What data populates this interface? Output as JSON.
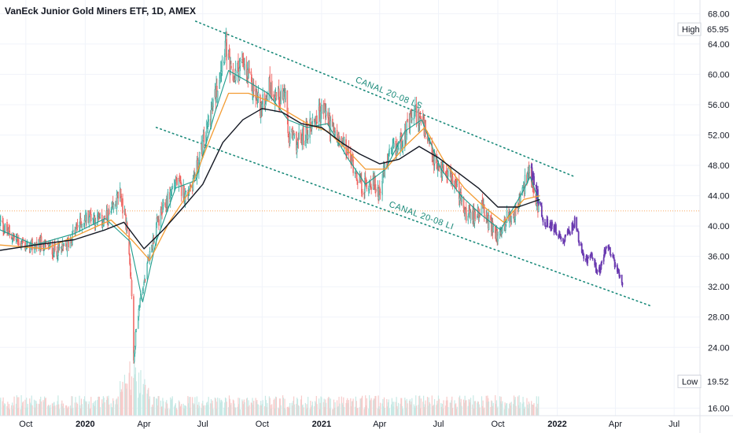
{
  "title": "VanEck Junior Gold Miners ETF, 1D, AMEX",
  "colors": {
    "up": "#26a69a",
    "down": "#ef5350",
    "candle_up_body": "#a5d6cf",
    "candle_down_body": "#f28b88",
    "forecast": "#6a3ab0",
    "channel": "#1a8a7a",
    "ma_black": "#131722",
    "ma_orange": "#f39c33",
    "ma_teal": "#1e9c8c",
    "hline": "#f6a860",
    "grid": "#f0f3fa",
    "axis_text": "#131722"
  },
  "chart_data": {
    "type": "candlestick",
    "y_ticks": [
      "68.00",
      "64.00",
      "60.00",
      "56.00",
      "52.00",
      "48.00",
      "44.00",
      "40.00",
      "36.00",
      "32.00",
      "28.00",
      "24.00",
      "16.00"
    ],
    "y_tick_values": [
      68,
      64,
      60,
      56,
      52,
      48,
      44,
      40,
      36,
      32,
      28,
      24,
      16
    ],
    "ylim": [
      15,
      69.8
    ],
    "x_ticks": [
      {
        "label": "Oct",
        "date": "2019-10-01"
      },
      {
        "label": "2020",
        "date": "2020-01-01",
        "year": true
      },
      {
        "label": "Apr",
        "date": "2020-04-01"
      },
      {
        "label": "Jul",
        "date": "2020-07-01"
      },
      {
        "label": "Oct",
        "date": "2020-10-01"
      },
      {
        "label": "2021",
        "date": "2021-01-01",
        "year": true
      },
      {
        "label": "Apr",
        "date": "2021-04-01"
      },
      {
        "label": "Jul",
        "date": "2021-07-01"
      },
      {
        "label": "Oct",
        "date": "2021-10-01"
      },
      {
        "label": "2022",
        "date": "2022-01-01",
        "year": true
      },
      {
        "label": "Apr",
        "date": "2022-04-01"
      },
      {
        "label": "Jul",
        "date": "2022-07-01"
      }
    ],
    "x_range": [
      "2019-08-22",
      "2022-08-10"
    ],
    "high": {
      "label": "High",
      "value": "65.95"
    },
    "low": {
      "label": "Low",
      "value": "19.52"
    },
    "horizontal_line": 42,
    "price_path": [
      [
        "2019-08-22",
        40.5
      ],
      [
        "2019-09-05",
        39.0
      ],
      [
        "2019-09-20",
        38.0
      ],
      [
        "2019-10-05",
        37.2
      ],
      [
        "2019-10-25",
        37.6
      ],
      [
        "2019-11-15",
        36.8
      ],
      [
        "2019-12-01",
        37.0
      ],
      [
        "2019-12-20",
        40.0
      ],
      [
        "2020-01-08",
        41.5
      ],
      [
        "2020-01-25",
        40.5
      ],
      [
        "2020-02-10",
        41.5
      ],
      [
        "2020-02-24",
        44.5
      ],
      [
        "2020-03-05",
        40.0
      ],
      [
        "2020-03-12",
        33.0
      ],
      [
        "2020-03-16",
        22.0
      ],
      [
        "2020-03-20",
        27.0
      ],
      [
        "2020-03-27",
        30.5
      ],
      [
        "2020-04-07",
        35.0
      ],
      [
        "2020-04-20",
        40.0
      ],
      [
        "2020-05-05",
        43.0
      ],
      [
        "2020-05-20",
        46.0
      ],
      [
        "2020-06-05",
        44.0
      ],
      [
        "2020-06-20",
        47.0
      ],
      [
        "2020-07-05",
        52.0
      ],
      [
        "2020-07-20",
        57.0
      ],
      [
        "2020-08-05",
        64.0
      ],
      [
        "2020-08-15",
        59.0
      ],
      [
        "2020-08-30",
        61.5
      ],
      [
        "2020-09-15",
        58.5
      ],
      [
        "2020-09-30",
        55.5
      ],
      [
        "2020-10-12",
        58.5
      ],
      [
        "2020-10-25",
        57.0
      ],
      [
        "2020-11-05",
        57.5
      ],
      [
        "2020-11-10",
        52.0
      ],
      [
        "2020-11-25",
        51.0
      ],
      [
        "2020-12-10",
        52.5
      ],
      [
        "2020-12-20",
        54.0
      ],
      [
        "2021-01-05",
        55.5
      ],
      [
        "2021-01-20",
        52.0
      ],
      [
        "2021-02-05",
        50.5
      ],
      [
        "2021-02-20",
        48.0
      ],
      [
        "2021-03-05",
        45.0
      ],
      [
        "2021-03-20",
        46.0
      ],
      [
        "2021-03-30",
        44.5
      ],
      [
        "2021-04-15",
        49.0
      ],
      [
        "2021-04-30",
        50.5
      ],
      [
        "2021-05-15",
        53.0
      ],
      [
        "2021-05-25",
        55.0
      ],
      [
        "2021-06-05",
        54.0
      ],
      [
        "2021-06-17",
        50.0
      ],
      [
        "2021-06-30",
        47.5
      ],
      [
        "2021-07-15",
        47.5
      ],
      [
        "2021-07-30",
        45.0
      ],
      [
        "2021-08-10",
        42.0
      ],
      [
        "2021-08-20",
        41.0
      ],
      [
        "2021-09-05",
        42.5
      ],
      [
        "2021-09-20",
        40.0
      ],
      [
        "2021-10-01",
        38.5
      ],
      [
        "2021-10-15",
        41.0
      ],
      [
        "2021-10-30",
        42.0
      ],
      [
        "2021-11-10",
        45.0
      ],
      [
        "2021-11-18",
        47.5
      ],
      [
        "2021-11-25",
        44.0
      ],
      [
        "2021-12-05",
        42.0
      ]
    ],
    "forecast_path": [
      [
        "2021-11-20",
        47.8
      ],
      [
        "2021-11-30",
        44.5
      ],
      [
        "2021-12-10",
        41.0
      ],
      [
        "2021-12-20",
        40.0
      ],
      [
        "2021-12-30",
        39.5
      ],
      [
        "2022-01-10",
        37.5
      ],
      [
        "2022-01-20",
        39.5
      ],
      [
        "2022-01-28",
        40.5
      ],
      [
        "2022-02-05",
        37.5
      ],
      [
        "2022-02-15",
        35.5
      ],
      [
        "2022-02-25",
        36.0
      ],
      [
        "2022-03-05",
        33.5
      ],
      [
        "2022-03-15",
        36.5
      ],
      [
        "2022-03-22",
        37.0
      ],
      [
        "2022-03-30",
        35.0
      ],
      [
        "2022-04-05",
        34.0
      ],
      [
        "2022-04-12",
        32.5
      ]
    ],
    "ma_black": [
      [
        "2019-08-22",
        36.8
      ],
      [
        "2019-10-15",
        37.5
      ],
      [
        "2019-12-15",
        38.2
      ],
      [
        "2020-02-01",
        39.5
      ],
      [
        "2020-03-01",
        40.5
      ],
      [
        "2020-04-01",
        37.0
      ],
      [
        "2020-05-01",
        39.5
      ],
      [
        "2020-06-01",
        42.5
      ],
      [
        "2020-07-01",
        45.5
      ],
      [
        "2020-08-01",
        51.0
      ],
      [
        "2020-09-01",
        54.0
      ],
      [
        "2020-10-01",
        55.5
      ],
      [
        "2020-11-01",
        55.0
      ],
      [
        "2020-12-01",
        53.5
      ],
      [
        "2021-01-01",
        53.0
      ],
      [
        "2021-02-01",
        51.0
      ],
      [
        "2021-03-01",
        49.5
      ],
      [
        "2021-04-01",
        48.2
      ],
      [
        "2021-05-01",
        48.8
      ],
      [
        "2021-06-01",
        50.5
      ],
      [
        "2021-07-01",
        49.0
      ],
      [
        "2021-08-01",
        47.0
      ],
      [
        "2021-09-01",
        45.0
      ],
      [
        "2021-10-01",
        42.5
      ],
      [
        "2021-11-01",
        42.5
      ],
      [
        "2021-12-05",
        43.5
      ]
    ],
    "ma_orange": [
      [
        "2019-08-22",
        37.5
      ],
      [
        "2019-11-01",
        37.0
      ],
      [
        "2019-12-20",
        38.8
      ],
      [
        "2020-02-10",
        40.8
      ],
      [
        "2020-03-15",
        38.0
      ],
      [
        "2020-04-10",
        35.5
      ],
      [
        "2020-05-10",
        40.5
      ],
      [
        "2020-06-10",
        44.5
      ],
      [
        "2020-07-10",
        51.0
      ],
      [
        "2020-08-10",
        57.5
      ],
      [
        "2020-09-10",
        57.5
      ],
      [
        "2020-10-10",
        56.5
      ],
      [
        "2020-11-10",
        55.0
      ],
      [
        "2020-12-10",
        53.5
      ],
      [
        "2021-01-10",
        52.5
      ],
      [
        "2021-02-10",
        50.0
      ],
      [
        "2021-03-10",
        47.5
      ],
      [
        "2021-04-10",
        47.5
      ],
      [
        "2021-05-10",
        50.5
      ],
      [
        "2021-06-10",
        53.0
      ],
      [
        "2021-07-10",
        48.5
      ],
      [
        "2021-08-10",
        45.0
      ],
      [
        "2021-09-10",
        42.5
      ],
      [
        "2021-10-10",
        40.5
      ],
      [
        "2021-11-10",
        43.5
      ],
      [
        "2021-12-05",
        44.0
      ]
    ],
    "ma_teal": [
      [
        "2019-08-22",
        39.5
      ],
      [
        "2019-10-15",
        37.5
      ],
      [
        "2019-12-15",
        39.0
      ],
      [
        "2020-02-01",
        41.0
      ],
      [
        "2020-03-10",
        38.0
      ],
      [
        "2020-03-30",
        30.0
      ],
      [
        "2020-04-20",
        38.0
      ],
      [
        "2020-05-20",
        45.0
      ],
      [
        "2020-06-20",
        46.0
      ],
      [
        "2020-07-20",
        55.0
      ],
      [
        "2020-08-10",
        60.5
      ],
      [
        "2020-09-10",
        59.0
      ],
      [
        "2020-10-10",
        57.5
      ],
      [
        "2020-11-10",
        54.0
      ],
      [
        "2020-12-10",
        53.0
      ],
      [
        "2021-01-10",
        53.5
      ],
      [
        "2021-02-10",
        49.0
      ],
      [
        "2021-03-10",
        45.5
      ],
      [
        "2021-04-10",
        47.5
      ],
      [
        "2021-05-10",
        52.5
      ],
      [
        "2021-06-05",
        54.0
      ],
      [
        "2021-07-05",
        47.5
      ],
      [
        "2021-08-05",
        44.0
      ],
      [
        "2021-09-05",
        41.5
      ],
      [
        "2021-10-05",
        39.5
      ],
      [
        "2021-11-05",
        44.0
      ],
      [
        "2021-11-20",
        46.5
      ],
      [
        "2021-12-05",
        43.0
      ]
    ],
    "channels": [
      {
        "label": "CANAL 20-08 LS",
        "from": [
          "2020-06-20",
          67.0
        ],
        "to": [
          "2022-01-28",
          46.5
        ]
      },
      {
        "label": "CANAL 20-08 LI",
        "from": [
          "2020-04-20",
          53.0
        ],
        "to": [
          "2022-05-25",
          29.5
        ]
      }
    ]
  }
}
